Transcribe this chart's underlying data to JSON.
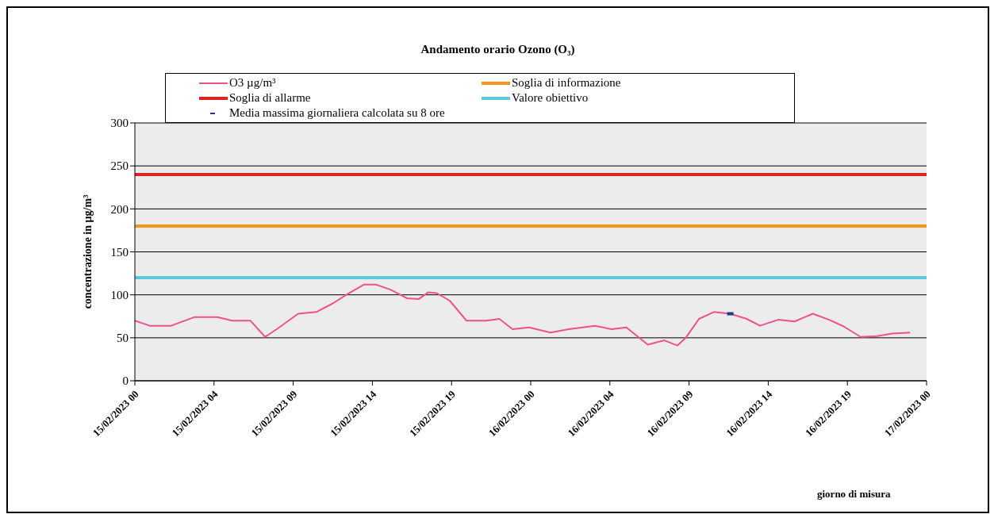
{
  "chart_data": {
    "type": "line",
    "title": "Andamento orario Ozono (O₃)",
    "xlabel": "giorno di misura",
    "ylabel": "concentrazione in µg/m³",
    "xlim": [
      "2023-02-15T00:00",
      "2023-02-17T00:00"
    ],
    "xticks": [
      {
        "value": "2023-02-15T00:00",
        "label": "15/02/2023 00"
      },
      {
        "value": "2023-02-15T04:48",
        "label": "15/02/2023 04"
      },
      {
        "value": "2023-02-15T09:36",
        "label": "15/02/2023 09"
      },
      {
        "value": "2023-02-15T14:24",
        "label": "15/02/2023 14"
      },
      {
        "value": "2023-02-15T19:12",
        "label": "15/02/2023 19"
      },
      {
        "value": "2023-02-16T00:00",
        "label": "16/02/2023 00"
      },
      {
        "value": "2023-02-16T04:48",
        "label": "16/02/2023 04"
      },
      {
        "value": "2023-02-16T09:36",
        "label": "16/02/2023 09"
      },
      {
        "value": "2023-02-16T14:24",
        "label": "16/02/2023 14"
      },
      {
        "value": "2023-02-16T19:12",
        "label": "16/02/2023 19"
      },
      {
        "value": "2023-02-17T00:00",
        "label": "17/02/2023 00"
      }
    ],
    "ylim": [
      0,
      300
    ],
    "yticks": [
      0,
      50,
      100,
      150,
      200,
      250,
      300
    ],
    "grid": "y",
    "legend": "top",
    "series": [
      {
        "name": "O3 µg/m³",
        "color": "#f0508c",
        "marker": "none",
        "x": [
          "2023-02-15T00:00",
          "2023-02-15T00:54",
          "2023-02-15T02:12",
          "2023-02-15T03:36",
          "2023-02-15T05:00",
          "2023-02-15T05:54",
          "2023-02-15T07:00",
          "2023-02-15T07:54",
          "2023-02-15T08:36",
          "2023-02-15T09:54",
          "2023-02-15T11:00",
          "2023-02-15T12:00",
          "2023-02-15T12:54",
          "2023-02-15T13:54",
          "2023-02-15T14:36",
          "2023-02-15T15:30",
          "2023-02-15T16:30",
          "2023-02-15T17:12",
          "2023-02-15T17:48",
          "2023-02-15T18:18",
          "2023-02-15T19:06",
          "2023-02-15T20:06",
          "2023-02-15T21:18",
          "2023-02-15T22:06",
          "2023-02-15T22:54",
          "2023-02-15T23:54",
          "2023-02-16T01:12",
          "2023-02-16T02:18",
          "2023-02-16T03:54",
          "2023-02-16T04:54",
          "2023-02-16T05:48",
          "2023-02-16T07:06",
          "2023-02-16T08:06",
          "2023-02-16T08:54",
          "2023-02-16T09:24",
          "2023-02-16T10:12",
          "2023-02-16T11:06",
          "2023-02-16T12:06",
          "2023-02-16T13:06",
          "2023-02-16T13:54",
          "2023-02-16T15:00",
          "2023-02-16T16:00",
          "2023-02-16T17:06",
          "2023-02-16T18:06",
          "2023-02-16T19:00",
          "2023-02-16T20:00",
          "2023-02-16T21:00",
          "2023-02-16T21:54",
          "2023-02-16T23:00"
        ],
        "values": [
          70,
          64,
          64,
          74,
          74,
          70,
          70,
          51,
          60,
          78,
          80,
          90,
          101,
          112,
          112,
          106,
          96,
          95,
          103,
          102,
          93,
          70,
          70,
          72,
          60,
          62,
          56,
          60,
          64,
          60,
          62,
          42,
          47,
          41,
          50,
          72,
          80,
          78,
          72,
          64,
          71,
          69,
          78,
          71,
          63,
          51,
          52,
          55,
          56
        ]
      },
      {
        "name": "Media massima giornaliera calcolata su 8 ore",
        "type": "scatter",
        "color": "#1f3c88",
        "marker": "square",
        "x": [
          "2023-02-16T12:06"
        ],
        "values": [
          78
        ]
      }
    ],
    "ref_lines": [
      {
        "axis": "y",
        "value": 180,
        "label": "Soglia di informazione",
        "color": "#f7941d"
      },
      {
        "axis": "y",
        "value": 240,
        "label": "Soglia di allarme",
        "color": "#e0231c"
      },
      {
        "axis": "y",
        "value": 120,
        "label": "Valore obiettivo",
        "color": "#5bc8dc"
      }
    ]
  }
}
